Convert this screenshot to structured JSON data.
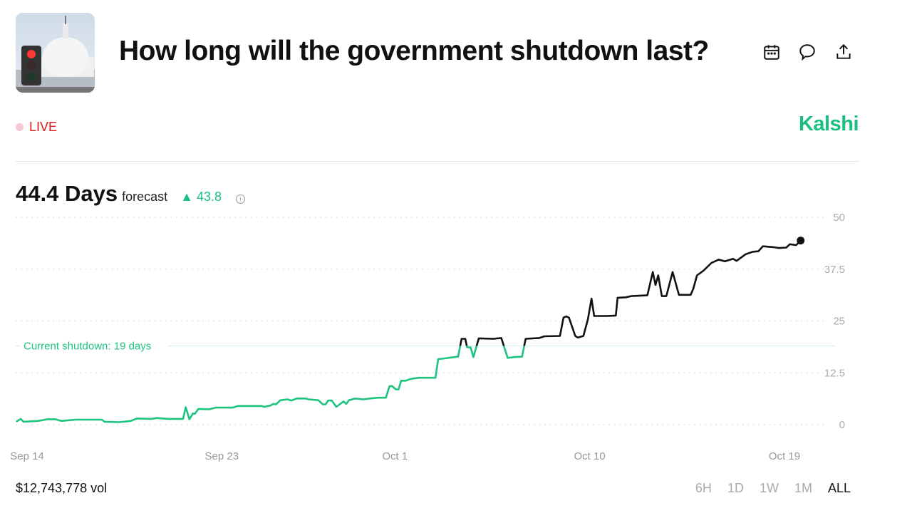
{
  "header": {
    "title": "How long will the government shutdown last?",
    "icons": [
      "calendar-icon",
      "comment-icon",
      "share-icon"
    ]
  },
  "status": {
    "live_label": "LIVE",
    "brand": "Kalshi"
  },
  "summary": {
    "value": "44.4 Days",
    "label": "forecast",
    "change": "43.8",
    "change_direction": "up"
  },
  "footer": {
    "volume": "$12,743,778 vol",
    "ranges": [
      "6H",
      "1D",
      "1W",
      "1M",
      "ALL"
    ],
    "active_range": "ALL"
  },
  "colors": {
    "above": "#111111",
    "below": "#1dc47f",
    "brand": "#19c07f",
    "live": "#e0191b"
  },
  "chart_data": {
    "type": "line",
    "ylim": [
      0,
      50
    ],
    "yticks": [
      "0",
      "12.5",
      "25",
      "37.5",
      "50"
    ],
    "xticks": [
      "Sep 14",
      "Sep 23",
      "Oct 1",
      "Oct 10",
      "Oct 19"
    ],
    "grid": true,
    "reference_line": {
      "value": 19,
      "label": "Current shutdown: 19 days"
    },
    "points": [
      [
        "Sep 13 12:00",
        0.7
      ],
      [
        "Sep 13 17:00",
        1.4
      ],
      [
        "Sep 13 20:00",
        0.7
      ],
      [
        "Sep 14 12:00",
        0.9
      ],
      [
        "Sep 14 23:00",
        1.3
      ],
      [
        "Sep 15 07:00",
        1.3
      ],
      [
        "Sep 15 14:00",
        0.9
      ],
      [
        "Sep 16 06:00",
        1.2
      ],
      [
        "Sep 17 11:00",
        1.2
      ],
      [
        "Sep 17 14:00",
        0.7
      ],
      [
        "Sep 18 06:00",
        0.6
      ],
      [
        "Sep 18 19:00",
        0.9
      ],
      [
        "Sep 19 02:00",
        1.5
      ],
      [
        "Sep 19 18:00",
        1.4
      ],
      [
        "Sep 20 00:00",
        1.6
      ],
      [
        "Sep 20 13:00",
        1.4
      ],
      [
        "Sep 21 05:00",
        1.4
      ],
      [
        "Sep 21 08:00",
        4.2
      ],
      [
        "Sep 21 12:00",
        1.3
      ],
      [
        "Sep 21 16:00",
        2.7
      ],
      [
        "Sep 21 18:00",
        2.6
      ],
      [
        "Sep 21 22:00",
        3.8
      ],
      [
        "Sep 22 10:00",
        3.7
      ],
      [
        "Sep 22 17:00",
        4.1
      ],
      [
        "Sep 23 12:00",
        4.1
      ],
      [
        "Sep 23 18:00",
        4.5
      ],
      [
        "Sep 24 20:00",
        4.5
      ],
      [
        "Sep 24 23:00",
        4.3
      ],
      [
        "Sep 25 06:00",
        4.6
      ],
      [
        "Sep 25 09:00",
        5.0
      ],
      [
        "Sep 25 12:00",
        4.9
      ],
      [
        "Sep 25 17:00",
        5.9
      ],
      [
        "Sep 26 01:00",
        6.1
      ],
      [
        "Sep 26 05:00",
        5.8
      ],
      [
        "Sep 26 11:00",
        6.3
      ],
      [
        "Sep 26 21:00",
        6.3
      ],
      [
        "Sep 27 00:00",
        6.1
      ],
      [
        "Sep 27 11:00",
        5.9
      ],
      [
        "Sep 27 16:00",
        4.9
      ],
      [
        "Sep 27 19:00",
        4.9
      ],
      [
        "Sep 27 22:00",
        5.8
      ],
      [
        "Sep 28 02:00",
        5.8
      ],
      [
        "Sep 28 07:00",
        4.3
      ],
      [
        "Sep 28 15:00",
        5.6
      ],
      [
        "Sep 28 18:00",
        5.0
      ],
      [
        "Sep 28 21:00",
        5.9
      ],
      [
        "Sep 29 04:00",
        6.3
      ],
      [
        "Sep 29 13:00",
        6.1
      ],
      [
        "Sep 29 20:00",
        6.3
      ],
      [
        "Sep 30 05:00",
        6.5
      ],
      [
        "Sep 30 14:00",
        6.5
      ],
      [
        "Sep 30 18:00",
        9.3
      ],
      [
        "Sep 30 21:00",
        9.3
      ],
      [
        "Oct 1 01:00",
        8.5
      ],
      [
        "Oct 1 04:00",
        8.5
      ],
      [
        "Oct 1 07:00",
        10.6
      ],
      [
        "Oct 1 12:00",
        10.6
      ],
      [
        "Oct 1 17:00",
        11.0
      ],
      [
        "Oct 2 02:00",
        11.3
      ],
      [
        "Oct 2 21:00",
        11.3
      ],
      [
        "Oct 3 00:00",
        15.8
      ],
      [
        "Oct 3 04:00",
        15.9
      ],
      [
        "Oct 3 22:00",
        16.4
      ],
      [
        "Oct 4 02:00",
        20.7
      ],
      [
        "Oct 4 06:00",
        20.7
      ],
      [
        "Oct 4 08:00",
        18.7
      ],
      [
        "Oct 4 12:00",
        18.6
      ],
      [
        "Oct 4 15:00",
        16.3
      ],
      [
        "Oct 4 21:00",
        20.8
      ],
      [
        "Oct 5 13:00",
        20.7
      ],
      [
        "Oct 5 22:00",
        20.9
      ],
      [
        "Oct 6 05:00",
        16.1
      ],
      [
        "Oct 6 13:00",
        16.3
      ],
      [
        "Oct 6 21:00",
        16.4
      ],
      [
        "Oct 7 01:00",
        20.7
      ],
      [
        "Oct 7 16:00",
        20.9
      ],
      [
        "Oct 7 22:00",
        21.3
      ],
      [
        "Oct 8 15:00",
        21.4
      ],
      [
        "Oct 8 19:00",
        25.8
      ],
      [
        "Oct 8 22:00",
        26.1
      ],
      [
        "Oct 9 01:00",
        25.8
      ],
      [
        "Oct 9 08:00",
        21.4
      ],
      [
        "Oct 9 11:00",
        21.0
      ],
      [
        "Oct 9 17:00",
        21.4
      ],
      [
        "Oct 9 22:00",
        25.4
      ],
      [
        "Oct 10 02:00",
        30.4
      ],
      [
        "Oct 10 05:00",
        26.2
      ],
      [
        "Oct 10 19:00",
        26.2
      ],
      [
        "Oct 11 05:00",
        26.3
      ],
      [
        "Oct 11 07:00",
        30.6
      ],
      [
        "Oct 11 16:00",
        30.7
      ],
      [
        "Oct 11 22:00",
        31.0
      ],
      [
        "Oct 12 16:00",
        31.2
      ],
      [
        "Oct 12 22:00",
        36.8
      ],
      [
        "Oct 13 01:00",
        33.7
      ],
      [
        "Oct 13 04:00",
        36.0
      ],
      [
        "Oct 13 08:00",
        31.0
      ],
      [
        "Oct 13 13:00",
        31.0
      ],
      [
        "Oct 13 20:00",
        36.8
      ],
      [
        "Oct 14 03:00",
        31.3
      ],
      [
        "Oct 14 16:00",
        31.3
      ],
      [
        "Oct 14 19:00",
        32.8
      ],
      [
        "Oct 14 23:00",
        36.0
      ],
      [
        "Oct 15 06:00",
        37.1
      ],
      [
        "Oct 15 15:00",
        39.0
      ],
      [
        "Oct 15 23:00",
        39.8
      ],
      [
        "Oct 16 06:00",
        39.4
      ],
      [
        "Oct 16 15:00",
        40.0
      ],
      [
        "Oct 16 19:00",
        39.5
      ],
      [
        "Oct 17 05:00",
        41.1
      ],
      [
        "Oct 17 13:00",
        41.7
      ],
      [
        "Oct 17 19:00",
        41.8
      ],
      [
        "Oct 18 00:00",
        43.0
      ],
      [
        "Oct 18 12:00",
        42.8
      ],
      [
        "Oct 18 18:00",
        42.6
      ],
      [
        "Oct 19 02:00",
        42.7
      ],
      [
        "Oct 19 06:00",
        43.5
      ],
      [
        "Oct 19 13:00",
        43.3
      ],
      [
        "Oct 19 18:00",
        44.4
      ]
    ]
  }
}
